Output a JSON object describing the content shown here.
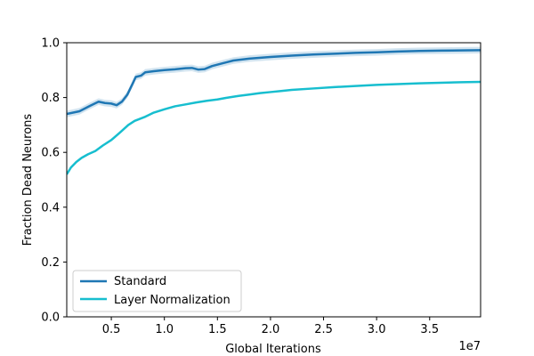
{
  "chart_data": {
    "type": "line",
    "title": "",
    "xlabel": "Global Iterations",
    "ylabel": "Fraction Dead Neurons",
    "x_offset_label": "1e7",
    "xlim": [
      0.08,
      3.98
    ],
    "ylim": [
      0.0,
      1.0
    ],
    "x_scale_factor": "1e7",
    "x_ticks": [
      0.5,
      1.0,
      1.5,
      2.0,
      2.5,
      3.0,
      3.5
    ],
    "x_tick_labels": [
      "0.5",
      "1.0",
      "1.5",
      "2.0",
      "2.5",
      "3.0",
      "3.5"
    ],
    "y_ticks": [
      0.0,
      0.2,
      0.4,
      0.6,
      0.8,
      1.0
    ],
    "y_tick_labels": [
      "0.0",
      "0.2",
      "0.4",
      "0.6",
      "0.8",
      "1.0"
    ],
    "grid": false,
    "legend_position": "lower-left",
    "series": [
      {
        "name": "Standard",
        "color": "#1f77b4",
        "x": [
          0.08,
          0.2,
          0.3,
          0.38,
          0.44,
          0.5,
          0.55,
          0.6,
          0.65,
          0.7,
          0.73,
          0.78,
          0.82,
          0.9,
          1.0,
          1.1,
          1.2,
          1.26,
          1.32,
          1.38,
          1.45,
          1.55,
          1.65,
          1.8,
          2.0,
          2.2,
          2.4,
          2.6,
          2.8,
          3.0,
          3.2,
          3.4,
          3.6,
          3.8,
          3.98
        ],
        "y": [
          0.74,
          0.75,
          0.77,
          0.785,
          0.78,
          0.778,
          0.772,
          0.785,
          0.81,
          0.85,
          0.875,
          0.88,
          0.892,
          0.896,
          0.9,
          0.903,
          0.907,
          0.908,
          0.902,
          0.904,
          0.915,
          0.925,
          0.935,
          0.942,
          0.948,
          0.953,
          0.957,
          0.96,
          0.963,
          0.965,
          0.968,
          0.97,
          0.971,
          0.972,
          0.973
        ],
        "band_width": 0.012
      },
      {
        "name": "Layer Normalization",
        "color": "#17becf",
        "x": [
          0.08,
          0.12,
          0.17,
          0.22,
          0.28,
          0.35,
          0.42,
          0.5,
          0.58,
          0.66,
          0.72,
          0.82,
          0.9,
          1.0,
          1.1,
          1.2,
          1.3,
          1.4,
          1.5,
          1.6,
          1.7,
          1.8,
          1.9,
          2.0,
          2.1,
          2.2,
          2.4,
          2.6,
          2.8,
          3.0,
          3.2,
          3.4,
          3.6,
          3.8,
          3.98
        ],
        "y": [
          0.52,
          0.545,
          0.565,
          0.58,
          0.593,
          0.605,
          0.625,
          0.645,
          0.672,
          0.7,
          0.715,
          0.73,
          0.745,
          0.757,
          0.768,
          0.775,
          0.782,
          0.788,
          0.793,
          0.8,
          0.806,
          0.811,
          0.816,
          0.82,
          0.824,
          0.828,
          0.833,
          0.838,
          0.842,
          0.846,
          0.849,
          0.852,
          0.854,
          0.856,
          0.857
        ]
      }
    ]
  }
}
